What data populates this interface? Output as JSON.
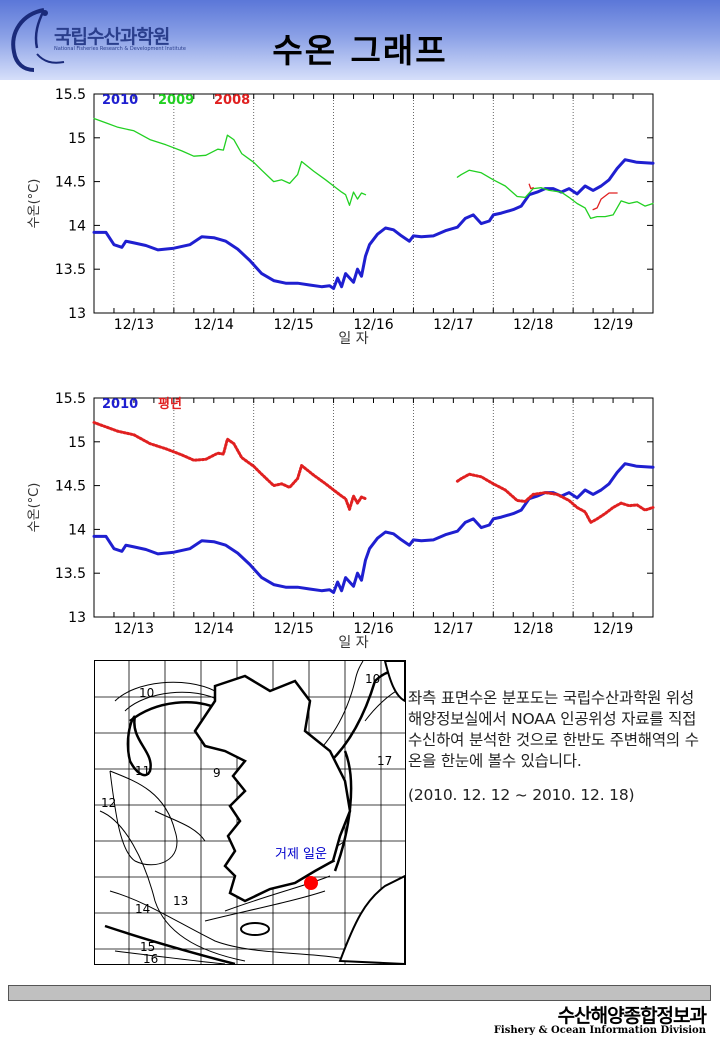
{
  "header": {
    "org_name_ko": "국립수산과학원",
    "org_name_en": "National Fisheries Research & Development Institute",
    "title": "수온 그래프"
  },
  "chart_data": [
    {
      "type": "line",
      "ylabel": "수온(°C)",
      "xlabel": "일 자",
      "ylim": [
        13,
        15.5
      ],
      "yticks": [
        "15.5",
        "15",
        "14.5",
        "14",
        "13.5",
        "13"
      ],
      "xlim": [
        12.5,
        19.5
      ],
      "categories": [
        "12/13",
        "12/14",
        "12/15",
        "12/16",
        "12/17",
        "12/18",
        "12/19"
      ],
      "legend": [
        {
          "label": "2010",
          "color": "#1f1fd0"
        },
        {
          "label": "2009",
          "color": "#22d022"
        },
        {
          "label": "2008",
          "color": "#e02020"
        }
      ],
      "series": [
        {
          "name": "2010",
          "color": "#1f1fd0",
          "width": 3,
          "dotted": false,
          "points": [
            [
              12.5,
              13.92
            ],
            [
              12.65,
              13.92
            ],
            [
              12.75,
              13.78
            ],
            [
              12.85,
              13.75
            ],
            [
              12.9,
              13.82
            ],
            [
              13.0,
              13.8
            ],
            [
              13.15,
              13.77
            ],
            [
              13.3,
              13.72
            ],
            [
              13.5,
              13.74
            ],
            [
              13.7,
              13.78
            ],
            [
              13.85,
              13.87
            ],
            [
              14.0,
              13.86
            ],
            [
              14.15,
              13.82
            ],
            [
              14.3,
              13.73
            ],
            [
              14.45,
              13.6
            ],
            [
              14.6,
              13.45
            ],
            [
              14.75,
              13.37
            ],
            [
              14.9,
              13.34
            ],
            [
              15.05,
              13.34
            ],
            [
              15.2,
              13.32
            ],
            [
              15.35,
              13.3
            ],
            [
              15.45,
              13.31
            ],
            [
              15.5,
              13.28
            ],
            [
              15.55,
              13.4
            ],
            [
              15.6,
              13.3
            ],
            [
              15.65,
              13.45
            ],
            [
              15.75,
              13.35
            ],
            [
              15.8,
              13.5
            ],
            [
              15.85,
              13.42
            ],
            [
              15.9,
              13.65
            ],
            [
              15.95,
              13.78
            ],
            [
              16.05,
              13.9
            ],
            [
              16.15,
              13.97
            ],
            [
              16.25,
              13.95
            ],
            [
              16.35,
              13.88
            ],
            [
              16.45,
              13.82
            ],
            [
              16.5,
              13.88
            ],
            [
              16.6,
              13.87
            ],
            [
              16.75,
              13.88
            ],
            [
              16.9,
              13.94
            ],
            [
              17.05,
              13.98
            ],
            [
              17.15,
              14.08
            ],
            [
              17.25,
              14.12
            ],
            [
              17.35,
              14.02
            ],
            [
              17.45,
              14.05
            ],
            [
              17.5,
              14.12
            ],
            [
              17.6,
              14.14
            ],
            [
              17.75,
              14.18
            ],
            [
              17.85,
              14.22
            ],
            [
              17.95,
              14.35
            ],
            [
              18.05,
              14.38
            ],
            [
              18.15,
              14.42
            ],
            [
              18.25,
              14.42
            ],
            [
              18.35,
              14.38
            ],
            [
              18.45,
              14.42
            ],
            [
              18.55,
              14.36
            ],
            [
              18.65,
              14.45
            ],
            [
              18.75,
              14.4
            ],
            [
              18.85,
              14.45
            ],
            [
              18.95,
              14.52
            ],
            [
              19.05,
              14.65
            ],
            [
              19.15,
              14.75
            ],
            [
              19.3,
              14.72
            ],
            [
              19.5,
              14.71
            ]
          ]
        },
        {
          "name": "2009",
          "color": "#22d022",
          "width": 1.3,
          "dotted": false,
          "points": [
            [
              12.5,
              15.22
            ],
            [
              12.65,
              15.17
            ],
            [
              12.8,
              15.12
            ],
            [
              13.0,
              15.08
            ],
            [
              13.2,
              14.98
            ],
            [
              13.4,
              14.92
            ],
            [
              13.6,
              14.85
            ],
            [
              13.75,
              14.79
            ],
            [
              13.9,
              14.8
            ],
            [
              14.05,
              14.87
            ],
            [
              14.12,
              14.86
            ],
            [
              14.17,
              15.03
            ],
            [
              14.25,
              14.98
            ],
            [
              14.35,
              14.82
            ],
            [
              14.5,
              14.72
            ],
            [
              14.6,
              14.63
            ],
            [
              14.75,
              14.5
            ],
            [
              14.85,
              14.52
            ],
            [
              14.95,
              14.48
            ],
            [
              15.05,
              14.58
            ],
            [
              15.1,
              14.73
            ],
            [
              15.25,
              14.62
            ],
            [
              15.4,
              14.52
            ],
            [
              15.5,
              14.45
            ],
            [
              15.6,
              14.38
            ],
            [
              15.65,
              14.35
            ],
            [
              15.7,
              14.23
            ],
            [
              15.75,
              14.38
            ],
            [
              15.8,
              14.3
            ],
            [
              15.85,
              14.37
            ],
            [
              15.9,
              14.35
            ],
            null,
            [
              17.05,
              14.55
            ],
            [
              17.1,
              14.58
            ],
            [
              17.2,
              14.63
            ],
            [
              17.35,
              14.6
            ],
            [
              17.5,
              14.52
            ],
            [
              17.65,
              14.45
            ],
            [
              17.8,
              14.33
            ],
            [
              17.9,
              14.32
            ],
            [
              18.0,
              14.42
            ],
            [
              18.1,
              14.43
            ],
            [
              18.2,
              14.4
            ],
            [
              18.35,
              14.38
            ],
            [
              18.45,
              14.32
            ],
            [
              18.55,
              14.25
            ],
            [
              18.65,
              14.2
            ],
            [
              18.72,
              14.08
            ],
            [
              18.8,
              14.1
            ],
            [
              18.9,
              14.1
            ],
            [
              19.0,
              14.12
            ],
            [
              19.1,
              14.28
            ],
            [
              19.2,
              14.25
            ],
            [
              19.3,
              14.27
            ],
            [
              19.4,
              14.22
            ],
            [
              19.5,
              14.25
            ]
          ]
        },
        {
          "name": "2008",
          "color": "#e02020",
          "width": 1.3,
          "dotted": false,
          "points": [
            [
              17.95,
              14.47
            ],
            [
              17.97,
              14.42
            ],
            [
              18.0,
              14.43
            ],
            null,
            [
              18.75,
              14.18
            ],
            [
              18.8,
              14.2
            ],
            [
              18.85,
              14.3
            ],
            [
              18.95,
              14.37
            ],
            [
              19.05,
              14.37
            ]
          ]
        }
      ]
    },
    {
      "type": "line",
      "ylabel": "수온(°C)",
      "xlabel": "일 자",
      "ylim": [
        13,
        15.5
      ],
      "yticks": [
        "15.5",
        "15",
        "14.5",
        "14",
        "13.5",
        "13"
      ],
      "xlim": [
        12.5,
        19.5
      ],
      "categories": [
        "12/13",
        "12/14",
        "12/15",
        "12/16",
        "12/17",
        "12/18",
        "12/19"
      ],
      "legend": [
        {
          "label": "2010",
          "color": "#1f1fd0"
        },
        {
          "label": "평년",
          "color": "#e02020"
        }
      ],
      "series": [
        {
          "name": "2010",
          "color": "#1f1fd0",
          "width": 3,
          "dotted": false,
          "points": [
            [
              12.5,
              13.92
            ],
            [
              12.65,
              13.92
            ],
            [
              12.75,
              13.78
            ],
            [
              12.85,
              13.75
            ],
            [
              12.9,
              13.82
            ],
            [
              13.0,
              13.8
            ],
            [
              13.15,
              13.77
            ],
            [
              13.3,
              13.72
            ],
            [
              13.5,
              13.74
            ],
            [
              13.7,
              13.78
            ],
            [
              13.85,
              13.87
            ],
            [
              14.0,
              13.86
            ],
            [
              14.15,
              13.82
            ],
            [
              14.3,
              13.73
            ],
            [
              14.45,
              13.6
            ],
            [
              14.6,
              13.45
            ],
            [
              14.75,
              13.37
            ],
            [
              14.9,
              13.34
            ],
            [
              15.05,
              13.34
            ],
            [
              15.2,
              13.32
            ],
            [
              15.35,
              13.3
            ],
            [
              15.45,
              13.31
            ],
            [
              15.5,
              13.28
            ],
            [
              15.55,
              13.4
            ],
            [
              15.6,
              13.3
            ],
            [
              15.65,
              13.45
            ],
            [
              15.75,
              13.35
            ],
            [
              15.8,
              13.5
            ],
            [
              15.85,
              13.42
            ],
            [
              15.9,
              13.65
            ],
            [
              15.95,
              13.78
            ],
            [
              16.05,
              13.9
            ],
            [
              16.15,
              13.97
            ],
            [
              16.25,
              13.95
            ],
            [
              16.35,
              13.88
            ],
            [
              16.45,
              13.82
            ],
            [
              16.5,
              13.88
            ],
            [
              16.6,
              13.87
            ],
            [
              16.75,
              13.88
            ],
            [
              16.9,
              13.94
            ],
            [
              17.05,
              13.98
            ],
            [
              17.15,
              14.08
            ],
            [
              17.25,
              14.12
            ],
            [
              17.35,
              14.02
            ],
            [
              17.45,
              14.05
            ],
            [
              17.5,
              14.12
            ],
            [
              17.6,
              14.14
            ],
            [
              17.75,
              14.18
            ],
            [
              17.85,
              14.22
            ],
            [
              17.95,
              14.35
            ],
            [
              18.05,
              14.38
            ],
            [
              18.15,
              14.42
            ],
            [
              18.25,
              14.42
            ],
            [
              18.35,
              14.38
            ],
            [
              18.45,
              14.42
            ],
            [
              18.55,
              14.36
            ],
            [
              18.65,
              14.45
            ],
            [
              18.75,
              14.4
            ],
            [
              18.85,
              14.45
            ],
            [
              18.95,
              14.52
            ],
            [
              19.05,
              14.65
            ],
            [
              19.15,
              14.75
            ],
            [
              19.3,
              14.72
            ],
            [
              19.5,
              14.71
            ]
          ]
        },
        {
          "name": "평년",
          "color": "#e02020",
          "width": 3,
          "dotted": true,
          "points": [
            [
              12.5,
              15.22
            ],
            [
              12.65,
              15.17
            ],
            [
              12.8,
              15.12
            ],
            [
              13.0,
              15.08
            ],
            [
              13.2,
              14.98
            ],
            [
              13.4,
              14.92
            ],
            [
              13.6,
              14.85
            ],
            [
              13.75,
              14.79
            ],
            [
              13.9,
              14.8
            ],
            [
              14.05,
              14.87
            ],
            [
              14.12,
              14.86
            ],
            [
              14.17,
              15.03
            ],
            [
              14.25,
              14.98
            ],
            [
              14.35,
              14.82
            ],
            [
              14.5,
              14.72
            ],
            [
              14.6,
              14.63
            ],
            [
              14.75,
              14.5
            ],
            [
              14.85,
              14.52
            ],
            [
              14.95,
              14.48
            ],
            [
              15.05,
              14.58
            ],
            [
              15.1,
              14.73
            ],
            [
              15.25,
              14.62
            ],
            [
              15.4,
              14.52
            ],
            [
              15.5,
              14.45
            ],
            [
              15.6,
              14.38
            ],
            [
              15.65,
              14.35
            ],
            [
              15.7,
              14.23
            ],
            [
              15.75,
              14.38
            ],
            [
              15.8,
              14.3
            ],
            [
              15.85,
              14.37
            ],
            [
              15.9,
              14.35
            ],
            null,
            [
              17.05,
              14.55
            ],
            [
              17.1,
              14.58
            ],
            [
              17.2,
              14.63
            ],
            [
              17.35,
              14.6
            ],
            [
              17.5,
              14.52
            ],
            [
              17.65,
              14.45
            ],
            [
              17.8,
              14.33
            ],
            [
              17.9,
              14.32
            ],
            [
              18.0,
              14.4
            ],
            [
              18.15,
              14.42
            ],
            [
              18.3,
              14.4
            ],
            [
              18.45,
              14.33
            ],
            [
              18.55,
              14.25
            ],
            [
              18.65,
              14.2
            ],
            [
              18.72,
              14.08
            ],
            [
              18.8,
              14.12
            ],
            [
              18.9,
              14.18
            ],
            [
              19.0,
              14.25
            ],
            [
              19.1,
              14.3
            ],
            [
              19.2,
              14.27
            ],
            [
              19.3,
              14.28
            ],
            [
              19.4,
              14.22
            ],
            [
              19.5,
              14.25
            ]
          ]
        }
      ]
    }
  ],
  "map": {
    "location_label": "거제 일운",
    "marker_color": "#ff0000",
    "contour_labels": [
      "10",
      "10",
      "11",
      "9",
      "12",
      "17",
      "13",
      "14",
      "15",
      "16"
    ]
  },
  "description": {
    "text": "좌측 표면수온 분포도는 국립수산과학원 위성해양정보실에서 NOAA 인공위성 자료를 직접 수신하여 분석한 것으로 한반도 주변해역의 수온을 한눈에 볼수 있습니다.",
    "period": "(2010. 12. 12 ~ 2010. 12. 18)"
  },
  "footer": {
    "org_ko": "수산해양종합정보과",
    "org_en": "Fishery & Ocean Information Division"
  }
}
